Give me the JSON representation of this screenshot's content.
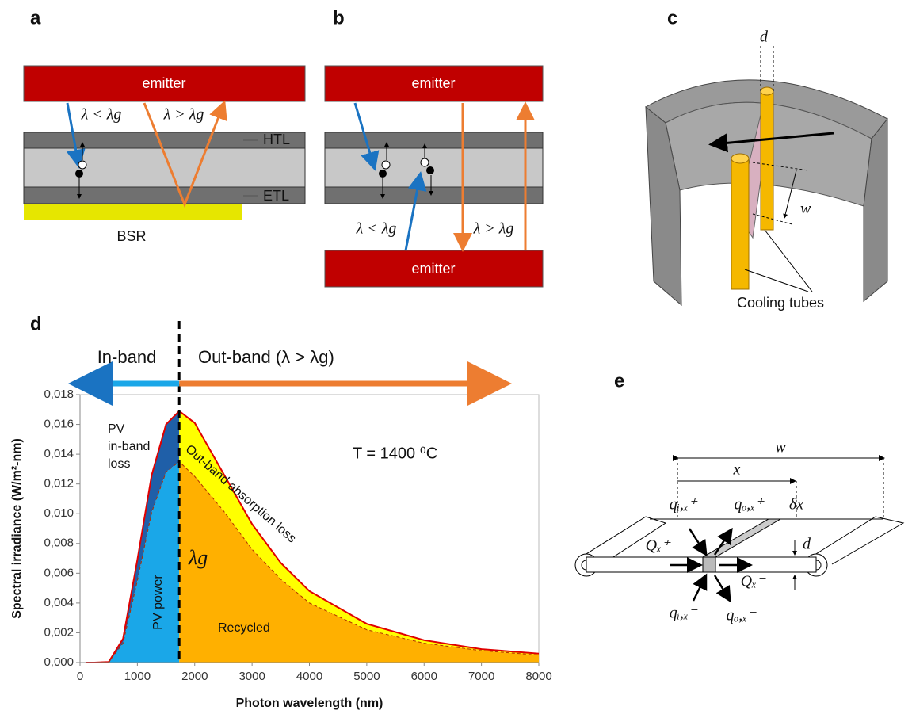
{
  "panels": {
    "a": {
      "label": "a",
      "emitter": "emitter",
      "short": "λ < λg",
      "long": "λ > λg",
      "htl": "HTL",
      "etl": "ETL",
      "bsr": "BSR"
    },
    "b": {
      "label": "b",
      "emitter_top": "emitter",
      "emitter_bottom": "emitter",
      "short": "λ < λg",
      "long": "λ > λg"
    },
    "c": {
      "label": "c",
      "d": "d",
      "w": "w",
      "tubes": "Cooling tubes"
    },
    "d": {
      "label": "d"
    },
    "e": {
      "label": "e",
      "w": "w",
      "x": "x",
      "q_i_plus": "qᵢ,ₓ⁺",
      "q_o_plus": "qₒ,ₓ⁺",
      "dx": "δx",
      "Q_plus": "Qₓ⁺",
      "d": "d",
      "Q_minus": "Qₓ⁻",
      "q_i_minus": "qᵢ,ₓ⁻",
      "q_o_minus": "qₒ,ₓ⁻"
    }
  },
  "chart_data": {
    "type": "area",
    "in_band": "In-band",
    "out_band": "Out-band (λ > λg)",
    "xlabel": "Photon wavelength (nm)",
    "ylabel": "Spectral irradiance (W/m²-nm)",
    "annotations": {
      "loss": "PV",
      "loss2": "in-band",
      "loss3": "loss",
      "absorption": "Out-band absorption loss",
      "power": "PV power",
      "recycled": "Recycled",
      "lambda": "λg",
      "temperature": "T = 1400 ⁰C"
    },
    "band_edge": 1730,
    "x": [
      100,
      250,
      500,
      750,
      1000,
      1250,
      1500,
      1730,
      2000,
      2500,
      3000,
      3500,
      4000,
      5000,
      6000,
      7000,
      8000
    ],
    "series": [
      {
        "color": "#e00000",
        "values": [
          0,
          0,
          4e-05,
          0.0016,
          0.0069,
          0.0126,
          0.016,
          0.0169,
          0.0161,
          0.0127,
          0.0093,
          0.0067,
          0.0048,
          0.0026,
          0.0015,
          0.0009,
          0.0006
        ]
      },
      {
        "color": "#b03000",
        "values": [
          0,
          0,
          3e-05,
          0.0013,
          0.0055,
          0.0101,
          0.0128,
          0.0135,
          0.0125,
          0.0102,
          0.0076,
          0.0056,
          0.004,
          0.0022,
          0.0013,
          0.0008,
          0.0005
        ]
      }
    ],
    "fill_colors": [
      "#1f5fa8",
      "#1aa7e8",
      "#ffff00",
      "#ffb000"
    ],
    "xlim": [
      0,
      8000
    ],
    "xticks": [
      0,
      1000,
      2000,
      3000,
      4000,
      5000,
      6000,
      7000,
      8000
    ],
    "ylim": [
      0,
      0.018
    ],
    "yticks": [
      {
        "value": 0,
        "label": "0,000"
      },
      {
        "value": 0.002,
        "label": "0,002"
      },
      {
        "value": 0.004,
        "label": "0,004"
      },
      {
        "value": 0.006,
        "label": "0,006"
      },
      {
        "value": 0.008,
        "label": "0,008"
      },
      {
        "value": 0.01,
        "label": "0,010"
      },
      {
        "value": 0.012,
        "label": "0,012"
      },
      {
        "value": 0.014,
        "label": "0,014"
      },
      {
        "value": 0.016,
        "label": "0,016"
      },
      {
        "value": 0.018,
        "label": "0,018"
      }
    ]
  }
}
